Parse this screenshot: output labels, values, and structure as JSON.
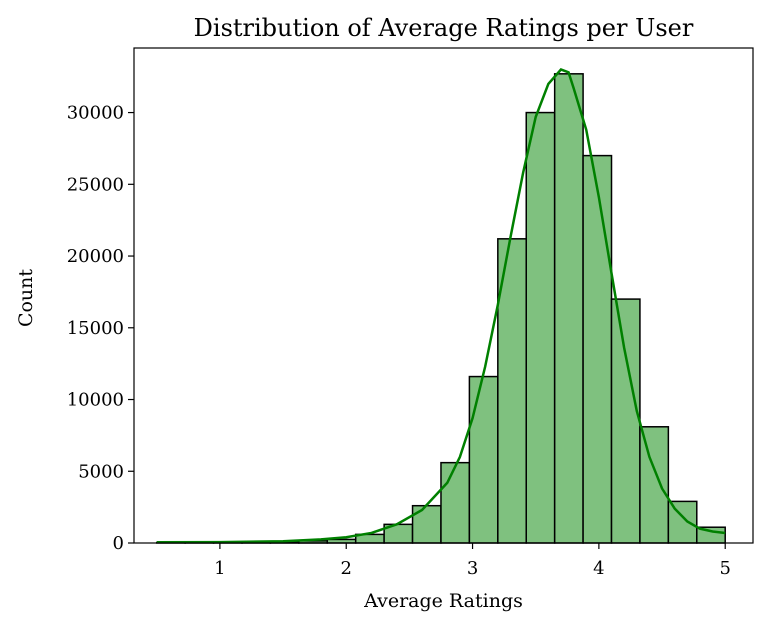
{
  "chart_data": {
    "type": "bar",
    "title": "Distribution of Average Ratings per User",
    "xlabel": "Average Ratings",
    "ylabel": "Count",
    "xlim": [
      0.32,
      5.22
    ],
    "ylim": [
      0,
      34500
    ],
    "xticks": [
      1,
      2,
      3,
      4,
      5
    ],
    "yticks": [
      0,
      5000,
      10000,
      15000,
      20000,
      25000,
      30000
    ],
    "grid": false,
    "bins": [
      {
        "x0": 0.5,
        "x1": 0.725,
        "count": 30
      },
      {
        "x0": 0.725,
        "x1": 0.95,
        "count": 40
      },
      {
        "x0": 0.95,
        "x1": 1.175,
        "count": 60
      },
      {
        "x0": 1.175,
        "x1": 1.4,
        "count": 70
      },
      {
        "x0": 1.4,
        "x1": 1.625,
        "count": 90
      },
      {
        "x0": 1.625,
        "x1": 1.85,
        "count": 150
      },
      {
        "x0": 1.85,
        "x1": 2.075,
        "count": 250
      },
      {
        "x0": 2.075,
        "x1": 2.3,
        "count": 600
      },
      {
        "x0": 2.3,
        "x1": 2.525,
        "count": 1300
      },
      {
        "x0": 2.525,
        "x1": 2.75,
        "count": 2600
      },
      {
        "x0": 2.75,
        "x1": 2.975,
        "count": 5600
      },
      {
        "x0": 2.975,
        "x1": 3.2,
        "count": 11600
      },
      {
        "x0": 3.2,
        "x1": 3.425,
        "count": 21200
      },
      {
        "x0": 3.425,
        "x1": 3.65,
        "count": 30000
      },
      {
        "x0": 3.65,
        "x1": 3.875,
        "count": 32700
      },
      {
        "x0": 3.875,
        "x1": 4.1,
        "count": 27000
      },
      {
        "x0": 4.1,
        "x1": 4.325,
        "count": 17000
      },
      {
        "x0": 4.325,
        "x1": 4.55,
        "count": 8100
      },
      {
        "x0": 4.55,
        "x1": 4.775,
        "count": 2900
      },
      {
        "x0": 4.775,
        "x1": 5.0,
        "count": 1100
      }
    ],
    "kde": {
      "x": [
        0.5,
        1.0,
        1.5,
        1.8,
        2.0,
        2.2,
        2.4,
        2.6,
        2.8,
        2.9,
        3.0,
        3.1,
        3.2,
        3.3,
        3.4,
        3.5,
        3.6,
        3.7,
        3.76,
        3.8,
        3.9,
        4.0,
        4.1,
        4.2,
        4.3,
        4.4,
        4.5,
        4.6,
        4.7,
        4.8,
        4.9,
        5.0
      ],
      "y": [
        50,
        60,
        120,
        250,
        400,
        700,
        1300,
        2300,
        4200,
        6000,
        8700,
        12300,
        16600,
        21300,
        25800,
        29700,
        32000,
        33000,
        32800,
        31700,
        28800,
        24100,
        18800,
        13600,
        9200,
        6000,
        3800,
        2400,
        1500,
        1000,
        800,
        700
      ]
    },
    "colors": {
      "bar_fill": "#7fc17f",
      "bar_edge": "#000000",
      "kde_line": "#008000"
    }
  }
}
